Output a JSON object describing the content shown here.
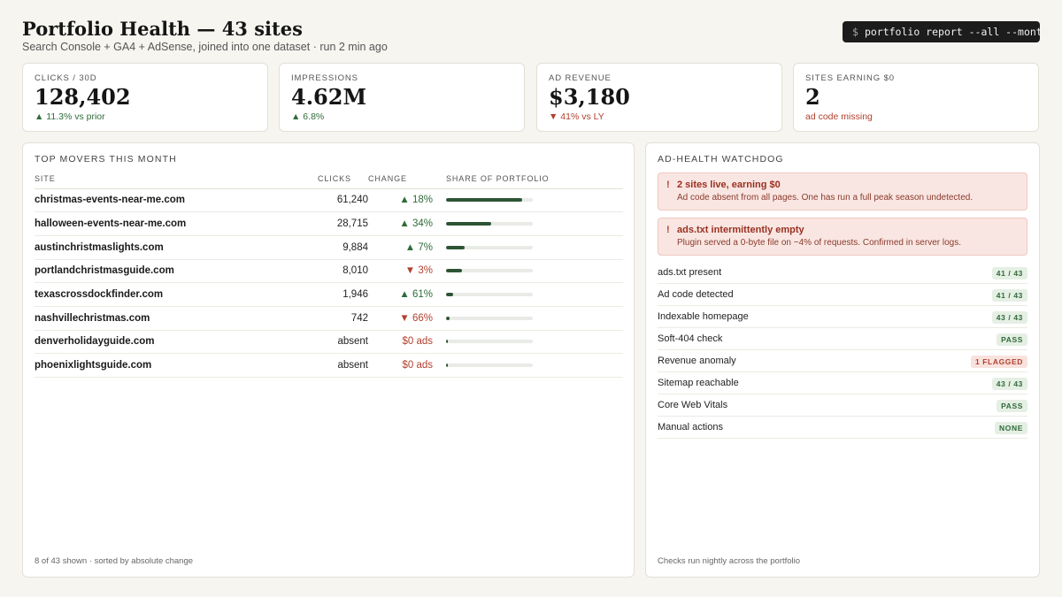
{
  "header": {
    "title": "Portfolio Health — 43 sites",
    "subtitle": "Search Console + GA4 + AdSense, joined into one dataset · run 2 min ago",
    "command_prompt": "$",
    "command": "portfolio report --all --month"
  },
  "kpis": [
    {
      "label": "CLICKS / 30D",
      "value": "128,402",
      "delta": "▲ 11.3% vs prior",
      "tone": "up"
    },
    {
      "label": "IMPRESSIONS",
      "value": "4.62M",
      "delta": "▲ 6.8%",
      "tone": "up"
    },
    {
      "label": "AD REVENUE",
      "value": "$3,180",
      "delta": "▼ 41% vs LY",
      "tone": "down"
    },
    {
      "label": "SITES EARNING $0",
      "value": "2",
      "delta": "ad code missing",
      "tone": "down"
    }
  ],
  "movers": {
    "title": "TOP MOVERS THIS MONTH",
    "columns": {
      "site": "SITE",
      "clicks": "CLICKS",
      "change": "CHANGE",
      "share": "SHARE OF PORTFOLIO"
    },
    "rows": [
      {
        "site": "christmas-events-near-me.com",
        "clicks": "61,240",
        "change": "▲ 18%",
        "tone": "up",
        "share": 0.88
      },
      {
        "site": "halloween-events-near-me.com",
        "clicks": "28,715",
        "change": "▲ 34%",
        "tone": "up",
        "share": 0.52
      },
      {
        "site": "austinchristmaslights.com",
        "clicks": "9,884",
        "change": "▲ 7%",
        "tone": "up",
        "share": 0.21
      },
      {
        "site": "portlandchristmasguide.com",
        "clicks": "8,010",
        "change": "▼ 3%",
        "tone": "down",
        "share": 0.18
      },
      {
        "site": "texascrossdockfinder.com",
        "clicks": "1,946",
        "change": "▲ 61%",
        "tone": "up",
        "share": 0.08
      },
      {
        "site": "nashvillechristmas.com",
        "clicks": "742",
        "change": "▼ 66%",
        "tone": "down",
        "share": 0.04
      },
      {
        "site": "denverholidayguide.com",
        "clicks": "absent",
        "change": "$0 ads",
        "tone": "down",
        "share": 0.02
      },
      {
        "site": "phoenixlightsguide.com",
        "clicks": "absent",
        "change": "$0 ads",
        "tone": "down",
        "share": 0.02
      }
    ],
    "footer": "8 of 43 shown · sorted by absolute change"
  },
  "watchdog": {
    "title": "AD-HEALTH WATCHDOG",
    "alerts": [
      {
        "mark": "!",
        "title": "2 sites live, earning $0",
        "desc": "Ad code absent from all pages. One has run a full peak season undetected."
      },
      {
        "mark": "!",
        "title": "ads.txt intermittently empty",
        "desc": "Plugin served a 0-byte file on ~4% of requests. Confirmed in server logs."
      }
    ],
    "checks": [
      {
        "label": "ads.txt present",
        "badge": "41 / 43",
        "tone": "ok"
      },
      {
        "label": "Ad code detected",
        "badge": "41 / 43",
        "tone": "ok"
      },
      {
        "label": "Indexable homepage",
        "badge": "43 / 43",
        "tone": "ok"
      },
      {
        "label": "Soft-404 check",
        "badge": "PASS",
        "tone": "ok"
      },
      {
        "label": "Revenue anomaly",
        "badge": "1 FLAGGED",
        "tone": "bad"
      },
      {
        "label": "Sitemap reachable",
        "badge": "43 / 43",
        "tone": "ok"
      },
      {
        "label": "Core Web Vitals",
        "badge": "PASS",
        "tone": "ok"
      },
      {
        "label": "Manual actions",
        "badge": "NONE",
        "tone": "ok"
      }
    ],
    "footer": "Checks run nightly across the portfolio"
  },
  "colors": {
    "up": "#2f6b3a",
    "down": "#b2402e",
    "bar": "#2d5434"
  }
}
